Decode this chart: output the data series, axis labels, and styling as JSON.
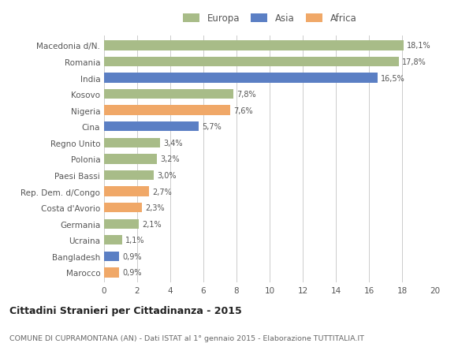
{
  "categories": [
    "Marocco",
    "Bangladesh",
    "Ucraina",
    "Germania",
    "Costa d'Avorio",
    "Rep. Dem. d/Congo",
    "Paesi Bassi",
    "Polonia",
    "Regno Unito",
    "Cina",
    "Nigeria",
    "Kosovo",
    "India",
    "Romania",
    "Macedonia d/N."
  ],
  "values": [
    0.9,
    0.9,
    1.1,
    2.1,
    2.3,
    2.7,
    3.0,
    3.2,
    3.4,
    5.7,
    7.6,
    7.8,
    16.5,
    17.8,
    18.1
  ],
  "labels": [
    "0,9%",
    "0,9%",
    "1,1%",
    "2,1%",
    "2,3%",
    "2,7%",
    "3,0%",
    "3,2%",
    "3,4%",
    "5,7%",
    "7,6%",
    "7,8%",
    "16,5%",
    "17,8%",
    "18,1%"
  ],
  "colors": [
    "#f0a868",
    "#5b7fc4",
    "#a8bc88",
    "#a8bc88",
    "#f0a868",
    "#f0a868",
    "#a8bc88",
    "#a8bc88",
    "#a8bc88",
    "#5b7fc4",
    "#f0a868",
    "#a8bc88",
    "#5b7fc4",
    "#a8bc88",
    "#a8bc88"
  ],
  "legend_labels": [
    "Europa",
    "Asia",
    "Africa"
  ],
  "legend_colors": [
    "#a8bc88",
    "#5b7fc4",
    "#f0a868"
  ],
  "title": "Cittadini Stranieri per Cittadinanza - 2015",
  "subtitle": "COMUNE DI CUPRAMONTANA (AN) - Dati ISTAT al 1° gennaio 2015 - Elaborazione TUTTITALIA.IT",
  "xlim": [
    0,
    20
  ],
  "xticks": [
    0,
    2,
    4,
    6,
    8,
    10,
    12,
    14,
    16,
    18,
    20
  ],
  "bg_color": "#ffffff",
  "bar_height": 0.6,
  "grid_color": "#cccccc"
}
